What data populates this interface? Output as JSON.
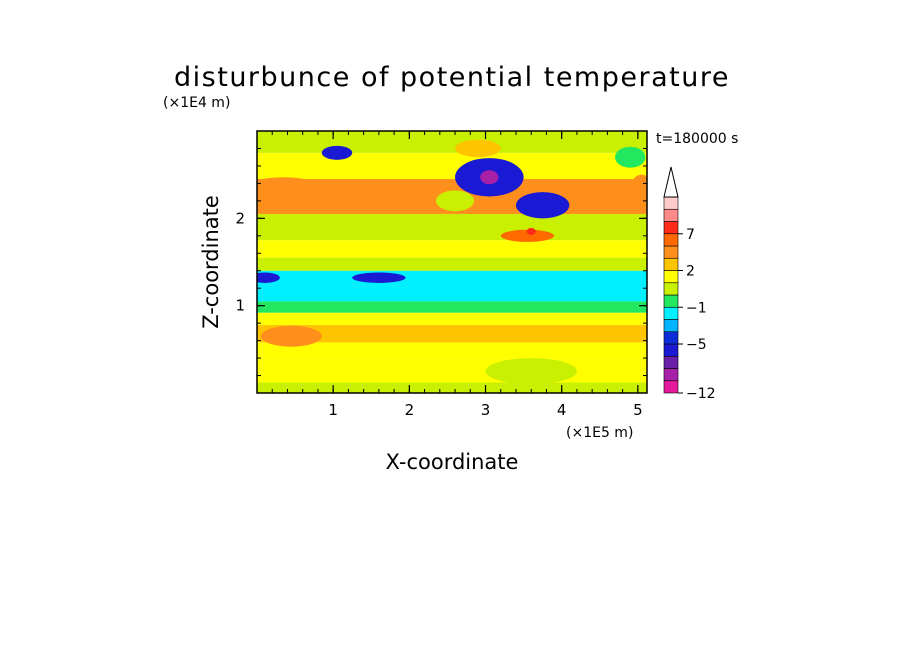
{
  "chart_data": {
    "type": "heatmap",
    "title": "disturbunce of potential temperature",
    "xlabel": "X-coordinate",
    "ylabel": "Z-coordinate",
    "x_unit": "(×1E5 m)",
    "y_unit": "(×1E4 m)",
    "time_label": "t=180000 s",
    "xlim": [
      0,
      5.12
    ],
    "ylim": [
      0,
      3.0
    ],
    "x_ticks": [
      "1",
      "2",
      "3",
      "4",
      "5"
    ],
    "y_ticks": [
      "1",
      "2"
    ],
    "colorbar": {
      "levels": [
        -12,
        -11,
        -9,
        -7,
        -5,
        -4,
        -3,
        -1,
        0,
        1,
        2,
        3,
        5,
        7,
        9,
        11
      ],
      "labels": [
        "7",
        "2",
        "−1",
        "−5",
        "−12"
      ],
      "colors": [
        "#e6199c",
        "#a81fa8",
        "#6a1fa8",
        "#1a1ad4",
        "#0d2dd9",
        "#00b4ff",
        "#00f0ff",
        "#22e860",
        "#c8f000",
        "#ffff00",
        "#ffc400",
        "#ff8f1c",
        "#ff6a00",
        "#ff2a1a",
        "#ff8a8a",
        "#ffcaca"
      ],
      "extend": "max"
    },
    "bands": [
      {
        "z": [
          0.0,
          0.12
        ],
        "value": 0.5
      },
      {
        "z": [
          0.12,
          0.4
        ],
        "value": 1.5
      },
      {
        "z": [
          0.4,
          0.58
        ],
        "value": 1.5
      },
      {
        "z": [
          0.58,
          0.78
        ],
        "value": 2.5
      },
      {
        "z": [
          0.78,
          0.92
        ],
        "value": 1.5
      },
      {
        "z": [
          0.92,
          1.05
        ],
        "value": -0.5
      },
      {
        "z": [
          1.05,
          1.4
        ],
        "value": -1.5
      },
      {
        "z": [
          1.4,
          1.55
        ],
        "value": 0.5
      },
      {
        "z": [
          1.55,
          1.75
        ],
        "value": 1.5
      },
      {
        "z": [
          1.75,
          2.05
        ],
        "value": 0.5
      },
      {
        "z": [
          2.05,
          2.45
        ],
        "value": 4
      },
      {
        "z": [
          2.45,
          2.75
        ],
        "value": 1.5
      },
      {
        "z": [
          2.75,
          3.0
        ],
        "value": 0.5
      }
    ],
    "features": [
      {
        "x": 3.05,
        "z": 2.47,
        "rx": 0.45,
        "rz": 0.22,
        "value": -6
      },
      {
        "x": 3.05,
        "z": 2.47,
        "rx": 0.12,
        "rz": 0.08,
        "value": -10
      },
      {
        "x": 3.75,
        "z": 2.15,
        "rx": 0.35,
        "rz": 0.15,
        "value": -5.5
      },
      {
        "x": 1.05,
        "z": 2.75,
        "rx": 0.2,
        "rz": 0.08,
        "value": -5.5
      },
      {
        "x": 0.35,
        "z": 2.35,
        "rx": 0.5,
        "rz": 0.12,
        "value": 4
      },
      {
        "x": 1.6,
        "z": 1.32,
        "rx": 0.35,
        "rz": 0.06,
        "value": -5.5
      },
      {
        "x": 0.1,
        "z": 1.32,
        "rx": 0.2,
        "rz": 0.06,
        "value": -5.5
      },
      {
        "x": 3.55,
        "z": 1.8,
        "rx": 0.35,
        "rz": 0.07,
        "value": 6
      },
      {
        "x": 3.6,
        "z": 1.85,
        "rx": 0.06,
        "rz": 0.04,
        "value": 8
      },
      {
        "x": 2.6,
        "z": 2.2,
        "rx": 0.25,
        "rz": 0.12,
        "value": 0.5
      },
      {
        "x": 5.05,
        "z": 2.4,
        "rx": 0.12,
        "rz": 0.1,
        "value": 4
      },
      {
        "x": 3.6,
        "z": 0.25,
        "rx": 0.6,
        "rz": 0.15,
        "value": 0.5
      },
      {
        "x": 2.9,
        "z": 2.8,
        "rx": 0.3,
        "rz": 0.1,
        "value": 2.5
      },
      {
        "x": 4.9,
        "z": 2.7,
        "rx": 0.2,
        "rz": 0.12,
        "value": -0.5
      },
      {
        "x": 0.45,
        "z": 0.65,
        "rx": 0.4,
        "rz": 0.12,
        "value": 4
      }
    ]
  }
}
